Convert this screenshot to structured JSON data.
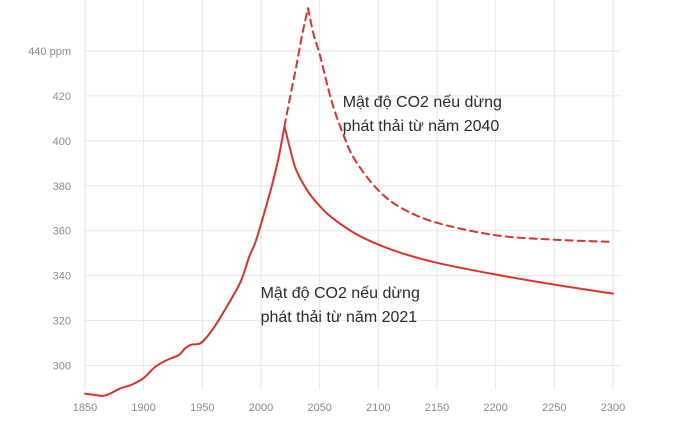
{
  "chart_data": {
    "type": "line",
    "title": "",
    "xlabel": "",
    "ylabel": "",
    "xlim": [
      1850,
      2300
    ],
    "ylim": [
      290,
      460
    ],
    "x_ticks": [
      1850,
      1900,
      1950,
      2000,
      2050,
      2100,
      2150,
      2200,
      2250,
      2300
    ],
    "x_tick_labels": [
      "1850",
      "1900",
      "1950",
      "2000",
      "2050",
      "2100",
      "2150",
      "2200",
      "2250",
      "2300"
    ],
    "y_ticks": [
      300,
      320,
      340,
      360,
      380,
      400,
      420,
      440
    ],
    "y_tick_labels": [
      "300",
      "320",
      "340",
      "360",
      "380",
      "400",
      "420",
      "440 ppm"
    ],
    "grid": "vertical and horizontal",
    "series": [
      {
        "style": "solid",
        "color": "#e0312b",
        "x": [
          1850,
          1860,
          1865,
          1870,
          1880,
          1890,
          1900,
          1910,
          1920,
          1930,
          1935,
          1940,
          1945,
          1950,
          1960,
          1970,
          1980,
          1985,
          1990,
          1995,
          2000,
          2005,
          2010,
          2015,
          2020,
          2025,
          2030,
          2040,
          2050,
          2060,
          2080,
          2100,
          2120,
          2150,
          2200,
          2250,
          2300
        ],
        "values": [
          287.5,
          286.8,
          286.5,
          287.2,
          289.8,
          291.5,
          294.5,
          299.5,
          302.5,
          304.7,
          307.5,
          309.2,
          309.5,
          310.5,
          317,
          325.5,
          334.5,
          340.5,
          348.5,
          354.5,
          363,
          372,
          381.5,
          392.5,
          406.5,
          396,
          387,
          377.5,
          371,
          366,
          358.8,
          353.8,
          350,
          345.7,
          340.5,
          336,
          332
        ]
      },
      {
        "style": "dashed",
        "color": "#e0312b",
        "x": [
          2020,
          2025,
          2030,
          2035,
          2040,
          2045,
          2050,
          2060,
          2070,
          2080,
          2100,
          2120,
          2150,
          2200,
          2250,
          2300
        ],
        "values": [
          406.5,
          420,
          433,
          447,
          459,
          447,
          438.5,
          418,
          403,
          391.5,
          378,
          370,
          363.5,
          358,
          356,
          355
        ]
      }
    ],
    "annotations": [
      {
        "lines": [
          "Mật độ CO2 nếu dừng",
          "phát thải từ năm 2040"
        ],
        "x": 2160,
        "y": 415
      },
      {
        "lines": [
          "Mật độ CO2 nếu dừng",
          "phát thải từ năm 2021"
        ],
        "x": 2090,
        "y": 330
      }
    ]
  }
}
